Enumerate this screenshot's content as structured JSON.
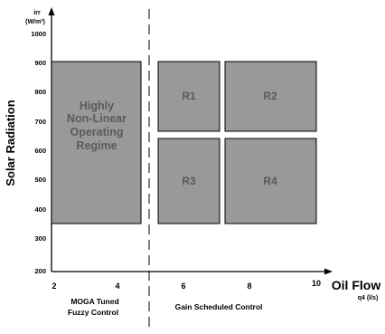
{
  "y_axis": {
    "unit_top": "irr",
    "unit_bottom": "(W/m²)",
    "title": "Solar Radiation",
    "ticks": [
      "1000",
      "900",
      "800",
      "700",
      "600",
      "500",
      "400",
      "300",
      "200"
    ]
  },
  "x_axis": {
    "title": "Oil Flow",
    "unit": "q4 (l/s)",
    "ticks": [
      "2",
      "4",
      "6",
      "8",
      "10"
    ]
  },
  "regions": {
    "left": {
      "line1": "Highly",
      "line2": "Non-Linear",
      "line3": "Operating",
      "line4": "Regime"
    },
    "r1": "R1",
    "r2": "R2",
    "r3": "R3",
    "r4": "R4"
  },
  "sections": {
    "left_line1": "MOGA Tuned",
    "left_line2": "Fuzzy Control",
    "right": "Gain Scheduled Control"
  },
  "colors": {
    "region_fill": "#999999",
    "region_stroke": "#000000",
    "region_text": "#5a5a5a"
  }
}
